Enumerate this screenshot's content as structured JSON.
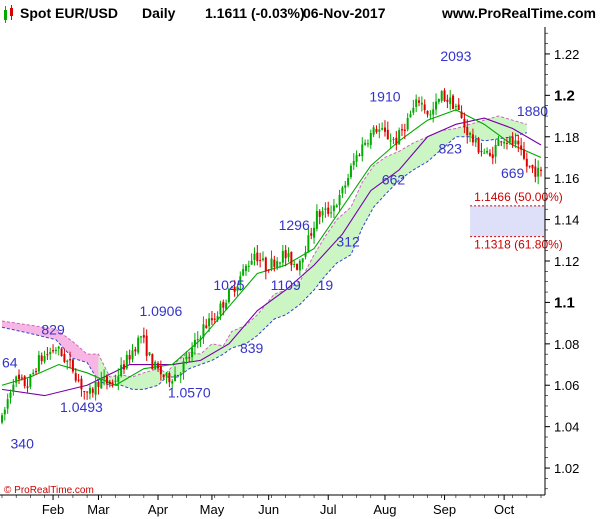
{
  "header": {
    "title": "Spot EUR/USD",
    "period": "Daily",
    "quote": "1.1611 (-0.03%)",
    "date": "06-Nov-2017",
    "site": "www.ProRealTime.com"
  },
  "footer": {
    "copyright": "© ProRealTime.com"
  },
  "colors": {
    "up": "#00aa00",
    "down": "#dd0000",
    "ma_fast": "#00aa00",
    "ma_slow": "#7700aa",
    "cloud_green": "#ccf5c4",
    "cloud_pink": "#f8b6e4",
    "cloud_edge": "#3344cc",
    "annotation": "#3333cc",
    "fib": "#cc0000",
    "fib_band": "#dde0f8",
    "accent": "#444444"
  },
  "chart_data": {
    "type": "candlestick",
    "instrument": "Spot EUR/USD",
    "timeframe": "Daily",
    "ylim": [
      1.007,
      1.233
    ],
    "yticks": [
      1.02,
      1.04,
      1.06,
      1.08,
      1.1,
      1.12,
      1.14,
      1.16,
      1.18,
      1.2,
      1.22
    ],
    "yticks_bold": [
      1.1,
      1.2
    ],
    "xlabels": [
      "Feb",
      "Mar",
      "Apr",
      "May",
      "Jun",
      "Jul",
      "Aug",
      "Sep",
      "Oct"
    ],
    "grid": false,
    "price_path": [
      {
        "t": 0,
        "v": 1.043
      },
      {
        "t": 4,
        "v": 1.063
      },
      {
        "t": 9,
        "v": 1.06
      },
      {
        "t": 13,
        "v": 1.072
      },
      {
        "t": 19,
        "v": 1.078
      },
      {
        "t": 25,
        "v": 1.068
      },
      {
        "t": 30,
        "v": 1.054
      },
      {
        "t": 34,
        "v": 1.062
      },
      {
        "t": 39,
        "v": 1.061
      },
      {
        "t": 44,
        "v": 1.072
      },
      {
        "t": 49,
        "v": 1.084
      },
      {
        "t": 53,
        "v": 1.07
      },
      {
        "t": 58,
        "v": 1.063
      },
      {
        "t": 62,
        "v": 1.066
      },
      {
        "t": 66,
        "v": 1.074
      },
      {
        "t": 71,
        "v": 1.088
      },
      {
        "t": 75,
        "v": 1.093
      },
      {
        "t": 79,
        "v": 1.102
      },
      {
        "t": 83,
        "v": 1.11
      },
      {
        "t": 89,
        "v": 1.124
      },
      {
        "t": 93,
        "v": 1.117
      },
      {
        "t": 99,
        "v": 1.123
      },
      {
        "t": 104,
        "v": 1.118
      },
      {
        "t": 108,
        "v": 1.13
      },
      {
        "t": 111,
        "v": 1.142
      },
      {
        "t": 115,
        "v": 1.144
      },
      {
        "t": 119,
        "v": 1.15
      },
      {
        "t": 124,
        "v": 1.168
      },
      {
        "t": 128,
        "v": 1.178
      },
      {
        "t": 132,
        "v": 1.184
      },
      {
        "t": 136,
        "v": 1.18
      },
      {
        "t": 139,
        "v": 1.178
      },
      {
        "t": 143,
        "v": 1.188
      },
      {
        "t": 147,
        "v": 1.198
      },
      {
        "t": 151,
        "v": 1.19
      },
      {
        "t": 155,
        "v": 1.2
      },
      {
        "t": 160,
        "v": 1.195
      },
      {
        "t": 163,
        "v": 1.185
      },
      {
        "t": 167,
        "v": 1.176
      },
      {
        "t": 172,
        "v": 1.17
      },
      {
        "t": 176,
        "v": 1.18
      },
      {
        "t": 181,
        "v": 1.176
      },
      {
        "t": 185,
        "v": 1.166
      },
      {
        "t": 190,
        "v": 1.162
      }
    ],
    "ma_fast": [
      [
        0,
        1.06
      ],
      [
        10,
        1.064
      ],
      [
        20,
        1.07
      ],
      [
        30,
        1.066
      ],
      [
        40,
        1.06
      ],
      [
        50,
        1.068
      ],
      [
        60,
        1.07
      ],
      [
        70,
        1.082
      ],
      [
        80,
        1.098
      ],
      [
        90,
        1.114
      ],
      [
        100,
        1.118
      ],
      [
        110,
        1.126
      ],
      [
        120,
        1.146
      ],
      [
        130,
        1.166
      ],
      [
        140,
        1.178
      ],
      [
        150,
        1.188
      ],
      [
        160,
        1.193
      ],
      [
        170,
        1.186
      ],
      [
        180,
        1.176
      ],
      [
        190,
        1.17
      ]
    ],
    "ma_slow": [
      [
        0,
        1.058
      ],
      [
        15,
        1.055
      ],
      [
        30,
        1.06
      ],
      [
        45,
        1.07
      ],
      [
        60,
        1.07
      ],
      [
        70,
        1.072
      ],
      [
        80,
        1.08
      ],
      [
        90,
        1.096
      ],
      [
        100,
        1.106
      ],
      [
        110,
        1.118
      ],
      [
        120,
        1.133
      ],
      [
        130,
        1.154
      ],
      [
        140,
        1.164
      ],
      [
        150,
        1.18
      ],
      [
        160,
        1.186
      ],
      [
        170,
        1.189
      ],
      [
        180,
        1.184
      ],
      [
        190,
        1.176
      ]
    ],
    "cloud": [
      [
        0,
        1.091,
        1.088
      ],
      [
        10,
        1.089,
        1.085
      ],
      [
        19,
        1.087,
        1.082
      ],
      [
        25,
        1.081,
        1.073
      ],
      [
        30,
        1.075,
        1.071
      ],
      [
        34,
        1.075,
        1.062
      ],
      [
        38,
        1.064,
        1.06
      ],
      [
        42,
        1.065,
        1.06
      ],
      [
        46,
        1.064,
        1.058
      ],
      [
        50,
        1.066,
        1.058
      ],
      [
        55,
        1.068,
        1.06
      ],
      [
        58,
        1.066,
        1.064
      ],
      [
        62,
        1.072,
        1.064
      ],
      [
        66,
        1.076,
        1.068
      ],
      [
        70,
        1.075,
        1.07
      ],
      [
        74,
        1.08,
        1.072
      ],
      [
        78,
        1.079,
        1.075
      ],
      [
        81,
        1.086,
        1.078
      ],
      [
        86,
        1.089,
        1.08
      ],
      [
        90,
        1.094,
        1.084
      ],
      [
        96,
        1.104,
        1.092
      ],
      [
        100,
        1.106,
        1.094
      ],
      [
        105,
        1.11,
        1.099
      ],
      [
        110,
        1.123,
        1.106
      ],
      [
        114,
        1.132,
        1.113
      ],
      [
        118,
        1.14,
        1.119
      ],
      [
        123,
        1.146,
        1.123
      ],
      [
        127,
        1.158,
        1.136
      ],
      [
        131,
        1.166,
        1.146
      ],
      [
        135,
        1.17,
        1.152
      ],
      [
        140,
        1.173,
        1.159
      ],
      [
        145,
        1.177,
        1.164
      ],
      [
        150,
        1.18,
        1.168
      ],
      [
        155,
        1.183,
        1.174
      ],
      [
        160,
        1.184,
        1.18
      ],
      [
        165,
        1.186,
        1.18
      ],
      [
        170,
        1.188,
        1.178
      ],
      [
        175,
        1.19,
        1.179
      ],
      [
        180,
        1.188,
        1.18
      ],
      [
        185,
        1.186,
        1.182
      ]
    ],
    "cloud_pink_until": 34,
    "fib_levels": [
      {
        "label": "1.1466 (50.00%)",
        "value": 1.1466,
        "t_start": 165
      },
      {
        "label": "1.1318 (61.80%)",
        "value": 1.1318,
        "t_start": 165
      }
    ],
    "annotations": [
      {
        "text": "829",
        "t": 18,
        "v": 1.0845
      },
      {
        "text": "64",
        "t": 0,
        "v": 1.0685
      },
      {
        "text": "1.0493",
        "t": 28,
        "v": 1.0472
      },
      {
        "text": "340",
        "t": 3,
        "v": 1.0295
      },
      {
        "text": "1.0906",
        "t": 56,
        "v": 1.0935
      },
      {
        "text": "1.0570",
        "t": 66,
        "v": 1.054
      },
      {
        "text": "839",
        "t": 88,
        "v": 1.0755
      },
      {
        "text": "1025",
        "t": 80,
        "v": 1.106
      },
      {
        "text": "1109",
        "t": 100,
        "v": 1.106
      },
      {
        "text": "19",
        "t": 114,
        "v": 1.106
      },
      {
        "text": "312",
        "t": 122,
        "v": 1.127
      },
      {
        "text": "1296",
        "t": 103,
        "v": 1.135
      },
      {
        "text": "662",
        "t": 138,
        "v": 1.157
      },
      {
        "text": "1910",
        "t": 135,
        "v": 1.197
      },
      {
        "text": "823",
        "t": 158,
        "v": 1.172
      },
      {
        "text": "2093",
        "t": 160,
        "v": 1.2165
      },
      {
        "text": "1880",
        "t": 187,
        "v": 1.19
      },
      {
        "text": "669",
        "t": 180,
        "v": 1.16
      }
    ]
  }
}
